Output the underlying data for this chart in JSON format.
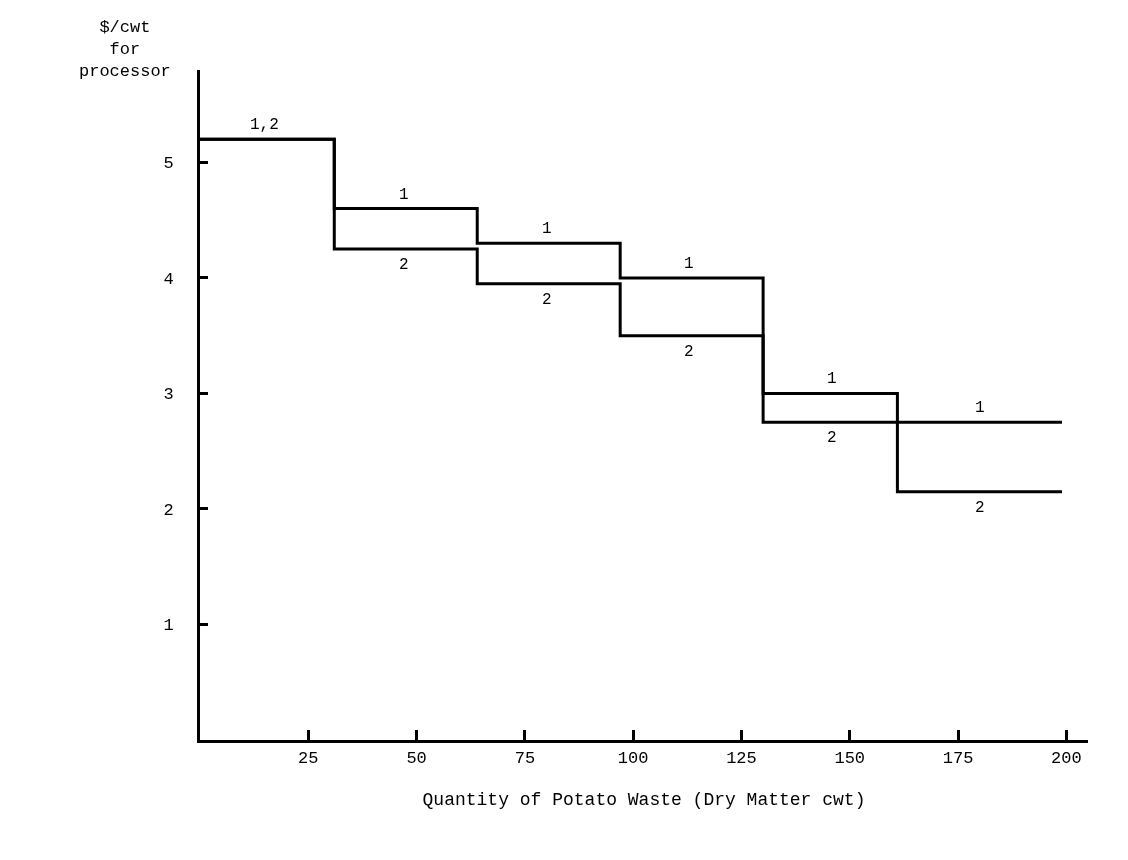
{
  "chart_data": {
    "type": "step",
    "xlabel": "Quantity of Potato Waste (Dry Matter cwt)",
    "ylabel": "$/cwt\nfor\nprocessor",
    "x": [
      0,
      31,
      64,
      97,
      130,
      161,
      199
    ],
    "series": [
      {
        "color": "#000000",
        "values": [
          5.2,
          4.6,
          4.3,
          4.0,
          3.0,
          2.75,
          2.75
        ]
      },
      {
        "color": "#000000",
        "values": [
          5.2,
          4.25,
          3.95,
          3.5,
          2.75,
          2.15,
          2.15
        ]
      }
    ],
    "xlim": [
      0,
      205
    ],
    "ylim": [
      0,
      5.8
    ],
    "xticks": [
      25,
      50,
      75,
      100,
      125,
      150,
      175,
      200
    ],
    "yticks": [
      1,
      2,
      3,
      4,
      5
    ],
    "line_style": "solid",
    "annotations": [
      {
        "text": "1,2",
        "x": 15,
        "y": 5.2
      },
      {
        "text": "1",
        "x": 47,
        "y": 4.6
      },
      {
        "text": "1",
        "x": 80,
        "y": 4.3
      },
      {
        "text": "1",
        "x": 113,
        "y": 4.0
      },
      {
        "text": "1",
        "x": 146,
        "y": 3.0
      },
      {
        "text": "1",
        "x": 180,
        "y": 2.75
      },
      {
        "text": "2",
        "x": 47,
        "y": 4.25
      },
      {
        "text": "2",
        "x": 80,
        "y": 3.95
      },
      {
        "text": "2",
        "x": 113,
        "y": 3.5
      },
      {
        "text": "2",
        "x": 146,
        "y": 2.75
      },
      {
        "text": "2",
        "x": 180,
        "y": 2.15
      }
    ]
  }
}
